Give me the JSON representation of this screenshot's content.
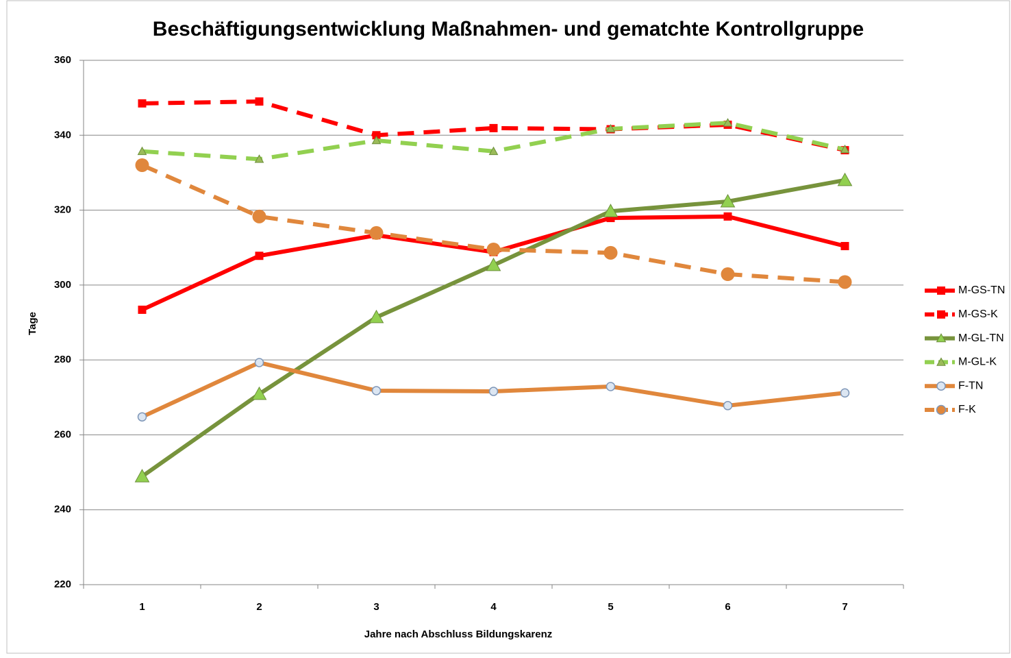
{
  "chart_data": {
    "type": "line",
    "title": "Beschäftigungsentwicklung Maßnahmen- und gematchte Kontrollgruppe",
    "x_label": "Jahre nach Abschluss Bildungskarenz",
    "y_label": "Tage",
    "categories": [
      "1",
      "2",
      "3",
      "4",
      "5",
      "6",
      "7"
    ],
    "ylim": [
      220,
      360
    ],
    "yticks": [
      220,
      240,
      260,
      280,
      300,
      320,
      340,
      360
    ],
    "grid": true,
    "legend": "right",
    "series": [
      {
        "name": "M-GS-TN",
        "color": "#ff0000",
        "dashed": false,
        "marker": "square",
        "marker_color": "#ff0000",
        "marker_size": 12,
        "values": [
          293.4,
          307.8,
          313.3,
          308.8,
          317.9,
          318.3,
          310.4
        ]
      },
      {
        "name": "M-GS-K",
        "color": "#ff0000",
        "dashed": true,
        "marker": "square",
        "marker_color": "#ff0000",
        "marker_size": 12,
        "values": [
          348.5,
          349,
          340,
          341.9,
          341.6,
          342.8,
          336
        ]
      },
      {
        "name": "M-GL-TN",
        "color": "#77933c",
        "dashed": false,
        "marker": "triangle",
        "marker_color": "#92d050",
        "marker_size": 20,
        "values": [
          248.9,
          270.9,
          291.4,
          305.3,
          319.7,
          322.3,
          328
        ]
      },
      {
        "name": "M-GL-K",
        "color": "#92d050",
        "dashed": true,
        "marker": "triangle",
        "marker_color": "#9bbb59",
        "marker_size": 12,
        "values": [
          335.7,
          333.6,
          338.6,
          335.7,
          341.7,
          343.3,
          336.2
        ]
      },
      {
        "name": "F-TN",
        "color": "#e0873c",
        "dashed": false,
        "marker": "circle",
        "marker_color": "#dce6f2",
        "marker_size": 12,
        "values": [
          264.8,
          279.3,
          271.8,
          271.6,
          272.9,
          267.8,
          271.2
        ]
      },
      {
        "name": "F-K",
        "color": "#e0873c",
        "dashed": true,
        "marker": "circle",
        "marker_color": "#e0873c",
        "marker_size": 20,
        "values": [
          332,
          318.3,
          313.9,
          309.5,
          308.6,
          302.9,
          300.8
        ]
      }
    ]
  }
}
